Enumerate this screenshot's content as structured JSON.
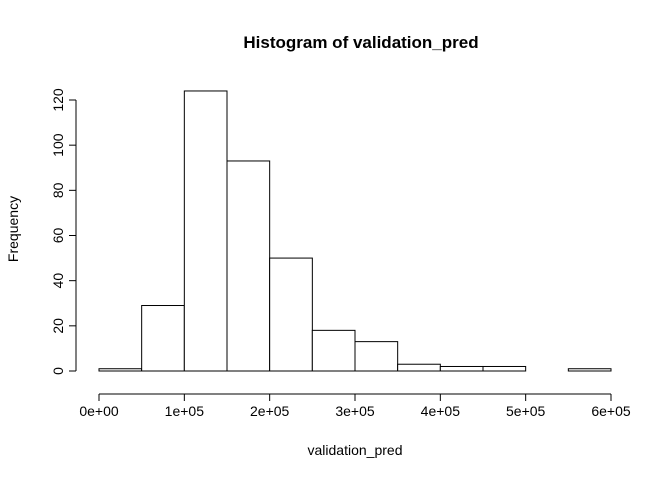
{
  "chart_data": {
    "type": "bar",
    "title": "Histogram of validation_pred",
    "xlabel": "validation_pred",
    "ylabel": "Frequency",
    "bin_edges": [
      0,
      50000,
      100000,
      150000,
      200000,
      250000,
      300000,
      350000,
      400000,
      450000,
      500000,
      550000,
      600000
    ],
    "values": [
      1,
      29,
      124,
      93,
      50,
      18,
      13,
      3,
      2,
      2,
      0,
      1
    ],
    "xlim": [
      0,
      600000
    ],
    "ylim": [
      0,
      120
    ],
    "x_ticks": [
      0,
      100000,
      200000,
      300000,
      400000,
      500000,
      600000
    ],
    "x_tick_labels": [
      "0e+00",
      "1e+05",
      "2e+05",
      "3e+05",
      "4e+05",
      "5e+05",
      "6e+05"
    ],
    "y_ticks": [
      0,
      20,
      40,
      60,
      80,
      100,
      120
    ],
    "y_tick_labels": [
      "0",
      "20",
      "40",
      "60",
      "80",
      "100",
      "120"
    ],
    "grid": false
  }
}
